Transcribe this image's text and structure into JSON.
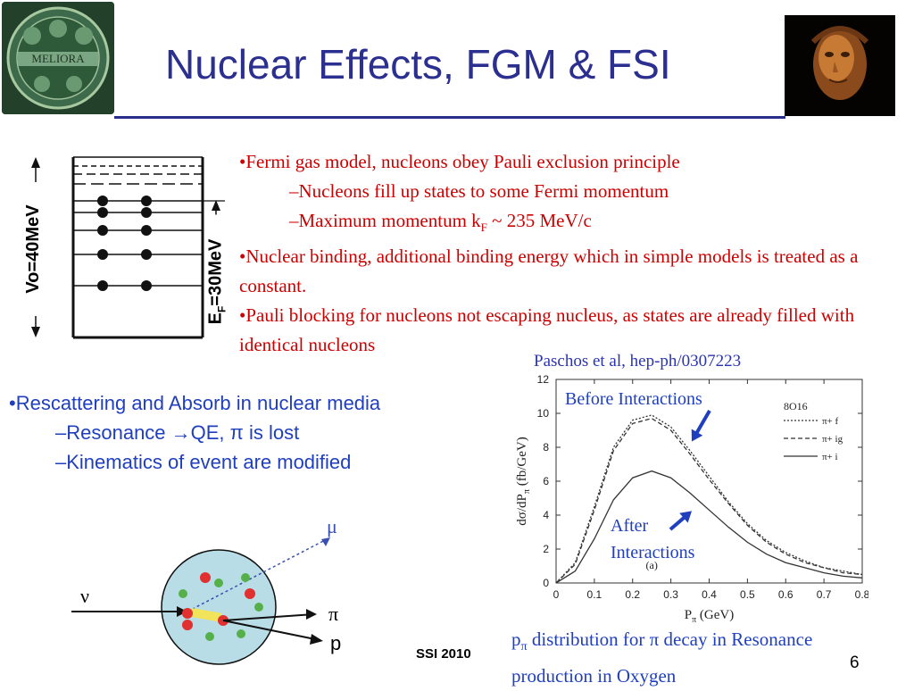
{
  "title": "Nuclear Effects, FGM & FSI",
  "logo_left_text": "MELIORA",
  "fermi": {
    "b1": "•Fermi gas model, nucleons obey Pauli exclusion principle",
    "s1": "–Nucleons fill up states to some  Fermi momentum",
    "s2_pre": "–Maximum momentum k",
    "s2_sub": "F",
    "s2_post": " ~ 235 MeV/c",
    "b2": "•Nuclear binding, additional binding energy which in simple models is treated as a constant.",
    "b3": "•Pauli blocking for nucleons not escaping nucleus, as states are already filled with identical nucleons"
  },
  "well_diagram": {
    "v0_label": "Vo=40MeV",
    "ef_label": "E",
    "ef_sub": "F",
    "ef_post": "=30MeV"
  },
  "rescatter": {
    "b1": "•Rescattering and Absorb  in nuclear media",
    "s1": "–Resonance →QE, π is lost",
    "s2": "–Kinematics of event are modified"
  },
  "nucleus_diagram": {
    "nu": "ν",
    "mu": "μ",
    "pi": "π",
    "p": "p"
  },
  "citation": "Paschos et al, hep-ph/0307223",
  "chart_annotations": {
    "before": "Before Interactions",
    "after_line1": "After",
    "after_line2": "Interactions"
  },
  "chart_data": {
    "type": "line",
    "xlabel": "P",
    "xlabel_sub": "π",
    "xlabel_unit": " (GeV)",
    "ylabel": "dσ/dP",
    "ylabel_sub": "π",
    "ylabel_unit": " (fb/GeV)",
    "xlim": [
      0,
      0.8
    ],
    "ylim": [
      0,
      12
    ],
    "x_ticks": [
      "0",
      "0.1",
      "0.2",
      "0.3",
      "0.4",
      "0.5",
      "0.6",
      "0.7",
      "0.8"
    ],
    "y_ticks": [
      "0",
      "2",
      "4",
      "6",
      "8",
      "10",
      "12"
    ],
    "panel_label": "(a)",
    "legend_title": "8O16",
    "legend": [
      "π+ f",
      "π+ ig",
      "π+ i"
    ],
    "x": [
      0.0,
      0.05,
      0.1,
      0.15,
      0.2,
      0.25,
      0.3,
      0.35,
      0.4,
      0.45,
      0.5,
      0.55,
      0.6,
      0.65,
      0.7,
      0.75,
      0.8
    ],
    "series": [
      {
        "name": "π+ f",
        "values": [
          0.0,
          1.2,
          4.5,
          8.0,
          9.6,
          9.9,
          9.2,
          7.8,
          6.3,
          4.8,
          3.5,
          2.5,
          1.8,
          1.3,
          0.9,
          0.7,
          0.5
        ]
      },
      {
        "name": "π+ ig",
        "values": [
          0.0,
          1.1,
          4.3,
          7.8,
          9.4,
          9.7,
          9.0,
          7.6,
          6.1,
          4.7,
          3.4,
          2.4,
          1.7,
          1.2,
          0.9,
          0.6,
          0.5
        ]
      },
      {
        "name": "π+ i",
        "values": [
          0.0,
          0.7,
          2.6,
          4.9,
          6.2,
          6.6,
          6.2,
          5.3,
          4.3,
          3.3,
          2.4,
          1.7,
          1.2,
          0.9,
          0.6,
          0.4,
          0.3
        ]
      }
    ],
    "colors": {
      "line": "#333333",
      "arrow": "#1f3fbf"
    }
  },
  "caption": {
    "pre": "p",
    "sub": "π",
    "post": " distribution for π decay in Resonance production in Oxygen"
  },
  "footer": "SSI 2010",
  "page_number": "6"
}
